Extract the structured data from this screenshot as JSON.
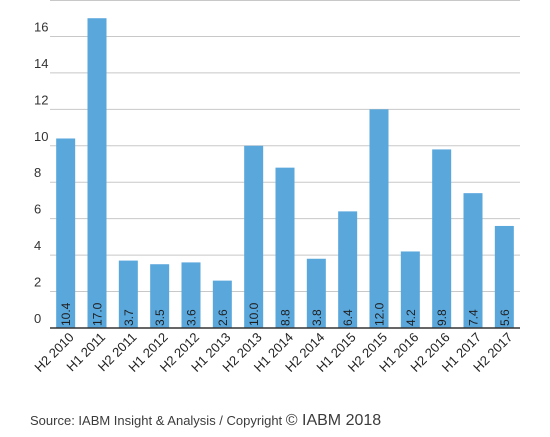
{
  "chart_data": {
    "type": "bar",
    "categories": [
      "H2 2010",
      "H1 2011",
      "H2 2011",
      "H1 2012",
      "H2 2012",
      "H1 2013",
      "H2 2013",
      "H1 2014",
      "H2 2014",
      "H1 2015",
      "H2 2015",
      "H1 2016",
      "H2 2016",
      "H1 2017",
      "H2 2017"
    ],
    "values": [
      10.4,
      17.0,
      3.7,
      3.5,
      3.6,
      2.6,
      10.0,
      8.8,
      3.8,
      6.4,
      12.0,
      4.2,
      9.8,
      7.4,
      5.6
    ],
    "value_labels": [
      "10.4",
      "17.0",
      "3.7",
      "3.5",
      "3.6",
      "2.6",
      "10.0",
      "8.8",
      "3.8",
      "6.4",
      "12.0",
      "4.2",
      "9.8",
      "7.4",
      "5.6"
    ],
    "yticks": [
      0,
      2,
      4,
      6,
      8,
      10,
      12,
      14,
      16
    ],
    "ylim": [
      0,
      18
    ],
    "grid": true,
    "bar_color": "#5aa7dc",
    "title": "",
    "xlabel": "",
    "ylabel": ""
  },
  "source": {
    "text": "Source: IABM Insight & Analysis / Copyright ",
    "brand": "© IABM 2018"
  }
}
